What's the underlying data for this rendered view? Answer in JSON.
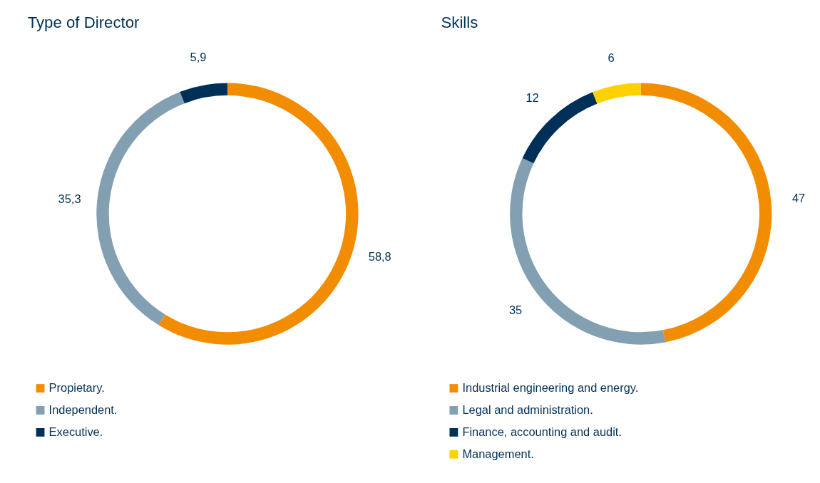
{
  "chart_data": [
    {
      "type": "donut",
      "title": "Type of Director",
      "categories": [
        "Propietary.",
        "Independent.",
        "Executive."
      ],
      "values": [
        58.8,
        35.3,
        5.9
      ],
      "colors": [
        "#f28c00",
        "#82a0b1",
        "#003057"
      ],
      "value_labels": [
        "58,8",
        "35,3",
        "5,9"
      ],
      "legend": "bottom"
    },
    {
      "type": "donut",
      "title": "Skills",
      "categories": [
        "Industrial engineering and energy.",
        "Legal and administration.",
        "Finance, accounting and audit.",
        "Management."
      ],
      "values": [
        47,
        35,
        12,
        6
      ],
      "colors": [
        "#f28c00",
        "#82a0b1",
        "#003057",
        "#ffd100"
      ],
      "value_labels": [
        "47",
        "35",
        "12",
        "6"
      ],
      "legend": "bottom"
    }
  ]
}
